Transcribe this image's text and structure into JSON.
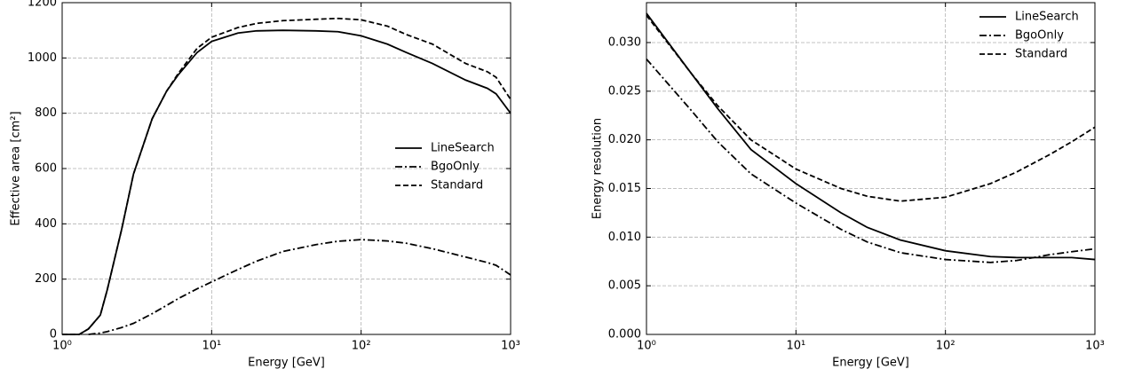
{
  "chart_data": [
    {
      "type": "line",
      "xlabel": "Energy [GeV]",
      "ylabel": "Effective area [cm²]",
      "xscale": "log",
      "xlim": [
        1,
        1000
      ],
      "xticks": [
        {
          "value": 1,
          "label": "10⁰"
        },
        {
          "value": 10,
          "label": "10¹"
        },
        {
          "value": 100,
          "label": "10²"
        },
        {
          "value": 1000,
          "label": "10³"
        }
      ],
      "ylim": [
        0,
        1200
      ],
      "yticks": [
        0,
        200,
        400,
        600,
        800,
        1000,
        1200
      ],
      "grid": true,
      "legend": "center right",
      "x": [
        1,
        1.3,
        1.5,
        1.8,
        2,
        2.5,
        3,
        4,
        5,
        6,
        8,
        10,
        15,
        20,
        30,
        50,
        70,
        100,
        150,
        200,
        300,
        500,
        700,
        800,
        1000
      ],
      "series": [
        {
          "name": "LineSearch",
          "color": "#000000",
          "style": "solid",
          "values": [
            0,
            0,
            20,
            70,
            160,
            380,
            580,
            780,
            880,
            940,
            1020,
            1060,
            1090,
            1098,
            1100,
            1098,
            1095,
            1080,
            1050,
            1020,
            980,
            920,
            890,
            870,
            800
          ]
        },
        {
          "name": "BgoOnly",
          "color": "#000000",
          "style": "dashdot",
          "values": [
            null,
            null,
            0,
            5,
            10,
            25,
            40,
            75,
            105,
            130,
            165,
            190,
            235,
            265,
            300,
            325,
            337,
            343,
            338,
            330,
            310,
            280,
            260,
            250,
            215
          ]
        },
        {
          "name": "Standard",
          "color": "#000000",
          "style": "dashed",
          "values": [
            0,
            0,
            20,
            70,
            160,
            380,
            580,
            780,
            880,
            945,
            1035,
            1075,
            1110,
            1125,
            1135,
            1140,
            1143,
            1138,
            1115,
            1085,
            1050,
            980,
            950,
            930,
            850
          ]
        }
      ]
    },
    {
      "type": "line",
      "xlabel": "Energy [GeV]",
      "ylabel": "Energy resolution",
      "xscale": "log",
      "xlim": [
        1,
        1000
      ],
      "xticks": [
        {
          "value": 1,
          "label": "10⁰"
        },
        {
          "value": 10,
          "label": "10¹"
        },
        {
          "value": 100,
          "label": "10²"
        },
        {
          "value": 1000,
          "label": "10³"
        }
      ],
      "ylim": [
        0,
        0.0341
      ],
      "yticks": [
        {
          "value": 0,
          "label": "0.000"
        },
        0.005,
        {
          "value": 0.01,
          "label": "0.010"
        },
        0.015,
        {
          "value": 0.02,
          "label": "0.020"
        },
        0.025,
        {
          "value": 0.03,
          "label": "0.030"
        }
      ],
      "grid": true,
      "legend": "upper right",
      "x": [
        1,
        2,
        3,
        5,
        10,
        20,
        30,
        50,
        100,
        200,
        300,
        500,
        700,
        1000
      ],
      "series": [
        {
          "name": "LineSearch",
          "color": "#000000",
          "style": "solid",
          "values": [
            0.033,
            0.0268,
            0.0232,
            0.019,
            0.0155,
            0.0125,
            0.011,
            0.0097,
            0.0086,
            0.008,
            0.0079,
            0.0079,
            0.0079,
            0.0077
          ]
        },
        {
          "name": "BgoOnly",
          "color": "#000000",
          "style": "dashdot",
          "values": [
            0.0283,
            0.023,
            0.0198,
            0.0165,
            0.0135,
            0.0108,
            0.0095,
            0.0084,
            0.0077,
            0.0074,
            0.0076,
            0.0082,
            0.0085,
            0.0088
          ]
        },
        {
          "name": "Standard",
          "color": "#000000",
          "style": "dashed",
          "values": [
            0.0328,
            0.0268,
            0.0235,
            0.02,
            0.017,
            0.015,
            0.0142,
            0.0137,
            0.0141,
            0.0155,
            0.0167,
            0.0185,
            0.0198,
            0.0213
          ]
        }
      ]
    }
  ]
}
